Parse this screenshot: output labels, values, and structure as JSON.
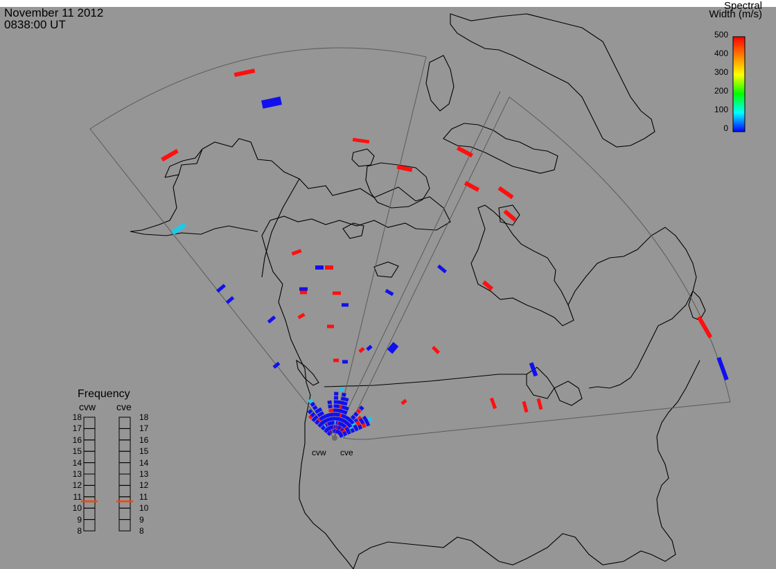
{
  "header": {
    "date": "November 11 2012",
    "time": "0838:00 UT"
  },
  "colorbar": {
    "title_line1": "Spectral",
    "title_line2": "Width (m/s)",
    "ticks": [
      "500",
      "400",
      "300",
      "200",
      "100",
      "0"
    ],
    "colors": [
      "#ff0000",
      "#ff8000",
      "#ffff00",
      "#00ff00",
      "#00ffff",
      "#0000ff"
    ]
  },
  "frequency": {
    "title": "Frequency",
    "radars": [
      "cvw",
      "cve"
    ],
    "scale": [
      "18",
      "17",
      "16",
      "15",
      "14",
      "13",
      "12",
      "11",
      "10",
      "9",
      "8"
    ],
    "cvw_mhz": 10.6,
    "cve_mhz": 10.6,
    "marker_color": "#ff4000"
  },
  "radar_sites": {
    "cvw_label": "cvw",
    "cve_label": "cve"
  },
  "colors": {
    "background": "#969696",
    "coast": "#000000",
    "fov": "#5a5a5a",
    "low_width": "#1010ee",
    "high_width": "#ff1010",
    "mid_width": "#20c8e8"
  }
}
